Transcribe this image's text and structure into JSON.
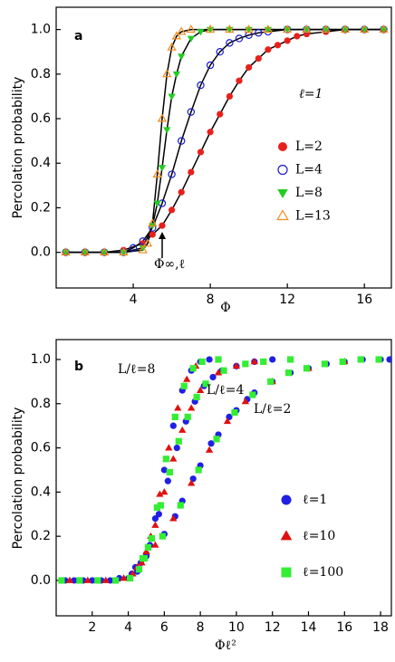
{
  "chart_data": [
    {
      "type": "scatter",
      "panel_label": "a",
      "ylabel": "Percolation probability",
      "xlabel": "Φ",
      "xlim": [
        0,
        17.4
      ],
      "ylim": [
        -0.16,
        1.1
      ],
      "xticks": [
        4,
        8,
        12,
        16
      ],
      "yticks": [
        {
          "value": 0,
          "label": "0.0"
        },
        0.2,
        0.4,
        0.6,
        0.8,
        {
          "value": 1,
          "label": "1.0"
        }
      ],
      "grid": false,
      "fit_lines": true,
      "fit_color": "#000000",
      "legend_title": "ℓ=1",
      "annotations": [
        "Φ∞,ℓ"
      ],
      "series": [
        {
          "name": "L=2",
          "color": "#e8201c",
          "marker": "circle",
          "filled": true,
          "x": [
            0.5,
            1.5,
            2.5,
            3.5,
            4.5,
            5.0,
            5.5,
            6.0,
            6.5,
            7.0,
            7.5,
            8.0,
            8.5,
            9.0,
            9.5,
            10.0,
            10.5,
            11.0,
            11.5,
            12.0,
            12.5,
            13.0,
            14.0,
            15.0,
            16.0,
            17.0
          ],
          "values": [
            0,
            0,
            0,
            0.01,
            0.04,
            0.08,
            0.12,
            0.19,
            0.27,
            0.36,
            0.45,
            0.54,
            0.62,
            0.7,
            0.77,
            0.83,
            0.87,
            0.91,
            0.93,
            0.95,
            0.97,
            0.98,
            0.99,
            1.0,
            1.0,
            1.0
          ]
        },
        {
          "name": "L=4",
          "color": "#1a1acc",
          "marker": "circle",
          "filled": false,
          "x": [
            0.5,
            1.5,
            2.5,
            3.5,
            4.0,
            4.5,
            5.0,
            5.5,
            6.0,
            6.5,
            7.0,
            7.5,
            8.0,
            8.5,
            9.0,
            9.5,
            10.0,
            10.5,
            11.0,
            12.0,
            13.0,
            14.0,
            15.0,
            16.0,
            17.0
          ],
          "values": [
            0,
            0,
            0,
            0,
            0.02,
            0.05,
            0.11,
            0.22,
            0.35,
            0.5,
            0.63,
            0.75,
            0.84,
            0.9,
            0.94,
            0.96,
            0.975,
            0.985,
            0.99,
            1.0,
            1.0,
            1.0,
            1.0,
            1.0,
            1.0
          ]
        },
        {
          "name": "L=8",
          "color": "#22cc22",
          "marker": "triangle-down",
          "filled": true,
          "x": [
            0.5,
            1.5,
            2.5,
            3.5,
            4.5,
            5.0,
            5.25,
            5.5,
            5.75,
            6.0,
            6.25,
            6.5,
            7.0,
            7.5,
            8.0,
            9.0,
            10.0,
            11.0,
            12.0,
            13.0,
            14.0,
            15.0,
            16.0,
            17.0
          ],
          "values": [
            0,
            0,
            0,
            0,
            0.02,
            0.12,
            0.22,
            0.38,
            0.55,
            0.7,
            0.8,
            0.88,
            0.96,
            0.99,
            1.0,
            1.0,
            1.0,
            1.0,
            1.0,
            1.0,
            1.0,
            1.0,
            1.0,
            1.0
          ]
        },
        {
          "name": "L=13",
          "color": "#f08c1e",
          "marker": "triangle-up",
          "filled": false,
          "x": [
            0.5,
            1.5,
            2.5,
            3.5,
            4.5,
            4.75,
            5.0,
            5.25,
            5.5,
            5.75,
            6.0,
            6.25,
            6.5,
            7.0,
            8.0,
            9.0,
            10.0,
            11.0,
            12.0,
            13.0,
            14.0,
            15.0,
            16.0,
            17.0
          ],
          "values": [
            0,
            0,
            0,
            0,
            0.01,
            0.04,
            0.13,
            0.35,
            0.6,
            0.8,
            0.92,
            0.97,
            0.99,
            1.0,
            1.0,
            1.0,
            1.0,
            1.0,
            1.0,
            1.0,
            1.0,
            1.0,
            1.0,
            1.0
          ]
        }
      ]
    },
    {
      "type": "scatter",
      "panel_label": "b",
      "ylabel": "Percolation probability",
      "xlabel": "Φℓ²",
      "xlim": [
        0,
        18.6
      ],
      "ylim": [
        -0.16,
        1.09
      ],
      "xticks": [
        2,
        4,
        6,
        8,
        10,
        12,
        14,
        16,
        18
      ],
      "yticks": [
        {
          "value": 0,
          "label": "0.0"
        },
        0.2,
        0.4,
        0.6,
        0.8,
        {
          "value": 1,
          "label": "1.0"
        }
      ],
      "grid": false,
      "fit_lines": false,
      "annotations": [
        "L/ℓ=8",
        "L/ℓ=4",
        "L/ℓ=2"
      ],
      "series": [
        {
          "name": "ℓ=1",
          "color": "#1f1fe6",
          "marker": "circle",
          "filled": true,
          "x": [
            0.5,
            1,
            1.5,
            2,
            2.5,
            3,
            3.5,
            4,
            4.5,
            5,
            5.5,
            6,
            6.5,
            7,
            7.5,
            8,
            8.5,
            4.2,
            4.7,
            5.2,
            5.7,
            6.2,
            6.7,
            7.2,
            7.7,
            8.2,
            8.7,
            9.2,
            10,
            11,
            12,
            4.4,
            5,
            6,
            6.6,
            7,
            7.6,
            8,
            8.6,
            9,
            9.6,
            10,
            10.6,
            11,
            12,
            13,
            14,
            15,
            16,
            17,
            18,
            18.5
          ],
          "values": [
            0,
            0,
            0,
            0,
            0,
            0,
            0.01,
            0.01,
            0.04,
            0.12,
            0.28,
            0.5,
            0.7,
            0.86,
            0.95,
            0.99,
            1.0,
            0.03,
            0.08,
            0.16,
            0.3,
            0.45,
            0.6,
            0.72,
            0.81,
            0.88,
            0.92,
            0.95,
            0.97,
            0.99,
            1.0,
            0.06,
            0.11,
            0.21,
            0.29,
            0.36,
            0.46,
            0.52,
            0.62,
            0.66,
            0.74,
            0.77,
            0.82,
            0.85,
            0.9,
            0.94,
            0.96,
            0.98,
            0.99,
            1.0,
            1.0,
            1.0
          ]
        },
        {
          "name": "ℓ=10",
          "color": "#e01010",
          "marker": "triangle-up",
          "filled": true,
          "x": [
            0.75,
            1.75,
            2.75,
            3.75,
            4.25,
            4.75,
            5.25,
            5.75,
            6.25,
            6.75,
            7.25,
            7.75,
            4.5,
            5,
            5.5,
            6,
            6.5,
            7,
            7.5,
            8,
            9,
            10,
            11,
            5.5,
            6.5,
            7.5,
            8.5,
            9.5,
            10.5,
            12,
            14,
            16
          ],
          "values": [
            0,
            0,
            0,
            0.01,
            0.03,
            0.08,
            0.2,
            0.39,
            0.6,
            0.78,
            0.91,
            0.97,
            0.06,
            0.13,
            0.25,
            0.4,
            0.55,
            0.68,
            0.78,
            0.86,
            0.94,
            0.97,
            0.99,
            0.16,
            0.28,
            0.44,
            0.59,
            0.72,
            0.81,
            0.9,
            0.96,
            0.99
          ]
        },
        {
          "name": "ℓ=100",
          "color": "#33ee33",
          "marker": "square",
          "filled": true,
          "x": [
            0.3,
            1.3,
            2.3,
            3.3,
            4.1,
            4.6,
            5.1,
            5.6,
            6.1,
            6.6,
            7.1,
            7.6,
            8.1,
            9,
            4.8,
            5.3,
            5.8,
            6.3,
            6.8,
            7.3,
            7.8,
            8.3,
            9.3,
            10.5,
            11.5,
            13,
            4.9,
            5.9,
            6.9,
            7.9,
            8.9,
            9.9,
            10.9,
            11.9,
            12.9,
            13.9,
            14.9,
            15.9,
            16.9,
            17.9
          ],
          "values": [
            0,
            0,
            0,
            0,
            0.01,
            0.05,
            0.15,
            0.33,
            0.55,
            0.74,
            0.88,
            0.96,
            0.99,
            1.0,
            0.1,
            0.19,
            0.34,
            0.49,
            0.63,
            0.74,
            0.83,
            0.89,
            0.95,
            0.98,
            0.99,
            1.0,
            0.1,
            0.2,
            0.34,
            0.5,
            0.64,
            0.76,
            0.84,
            0.9,
            0.94,
            0.96,
            0.98,
            0.99,
            1.0,
            1.0
          ]
        }
      ]
    }
  ]
}
